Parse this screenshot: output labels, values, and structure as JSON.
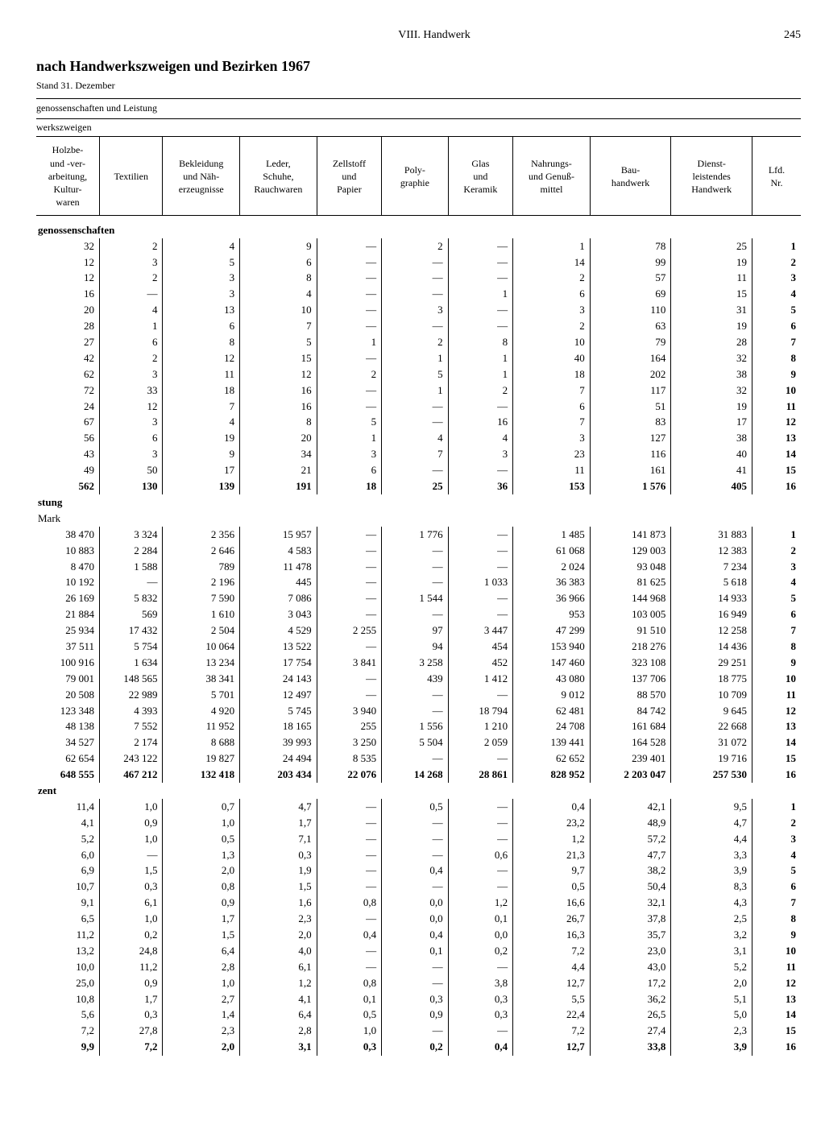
{
  "page": {
    "section": "VIII. Handwerk",
    "number": "245",
    "title": "nach Handwerkszweigen und Bezirken 1967",
    "date": "Stand 31. Dezember",
    "subhead1": "genossenschaften und Leistung",
    "subhead2": "werkszweigen"
  },
  "columns": [
    "Holzbe-\nund -ver-\narbeitung,\nKultur-\nwaren",
    "Textilien",
    "Bekleidung\nund Näh-\nerzeugnisse",
    "Leder,\nSchuhe,\nRauchwaren",
    "Zellstoff\nund\nPapier",
    "Poly-\ngraphie",
    "Glas\nund\nKeramik",
    "Nahrungs-\nund Genuß-\nmittel",
    "Bau-\nhandwerk",
    "Dienst-\nleistendes\nHandwerk",
    "Lfd.\nNr."
  ],
  "sections": [
    {
      "label": "genossenschaften",
      "unit": "",
      "rows": [
        [
          "32",
          "2",
          "4",
          "9",
          "—",
          "2",
          "—",
          "1",
          "78",
          "25",
          "1"
        ],
        [
          "12",
          "3",
          "5",
          "6",
          "—",
          "—",
          "—",
          "14",
          "99",
          "19",
          "2"
        ],
        [
          "12",
          "2",
          "3",
          "8",
          "—",
          "—",
          "—",
          "2",
          "57",
          "11",
          "3"
        ],
        [
          "16",
          "—",
          "3",
          "4",
          "—",
          "—",
          "1",
          "6",
          "69",
          "15",
          "4"
        ],
        [
          "20",
          "4",
          "13",
          "10",
          "—",
          "3",
          "—",
          "3",
          "110",
          "31",
          "5"
        ],
        [
          "28",
          "1",
          "6",
          "7",
          "—",
          "—",
          "—",
          "2",
          "63",
          "19",
          "6"
        ],
        [
          "27",
          "6",
          "8",
          "5",
          "1",
          "2",
          "8",
          "10",
          "79",
          "28",
          "7"
        ],
        [
          "42",
          "2",
          "12",
          "15",
          "—",
          "1",
          "1",
          "40",
          "164",
          "32",
          "8"
        ],
        [
          "62",
          "3",
          "11",
          "12",
          "2",
          "5",
          "1",
          "18",
          "202",
          "38",
          "9"
        ],
        [
          "72",
          "33",
          "18",
          "16",
          "—",
          "1",
          "2",
          "7",
          "117",
          "32",
          "10"
        ],
        [
          "24",
          "12",
          "7",
          "16",
          "—",
          "—",
          "—",
          "6",
          "51",
          "19",
          "11"
        ],
        [
          "67",
          "3",
          "4",
          "8",
          "5",
          "—",
          "16",
          "7",
          "83",
          "17",
          "12"
        ],
        [
          "56",
          "6",
          "19",
          "20",
          "1",
          "4",
          "4",
          "3",
          "127",
          "38",
          "13"
        ],
        [
          "43",
          "3",
          "9",
          "34",
          "3",
          "7",
          "3",
          "23",
          "116",
          "40",
          "14"
        ],
        [
          "49",
          "50",
          "17",
          "21",
          "6",
          "—",
          "—",
          "11",
          "161",
          "41",
          "15"
        ]
      ],
      "total": [
        "562",
        "130",
        "139",
        "191",
        "18",
        "25",
        "36",
        "153",
        "1 576",
        "405",
        "16"
      ]
    },
    {
      "label": "stung",
      "unit": "Mark",
      "rows": [
        [
          "38 470",
          "3 324",
          "2 356",
          "15 957",
          "—",
          "1 776",
          "—",
          "1 485",
          "141 873",
          "31 883",
          "1"
        ],
        [
          "10 883",
          "2 284",
          "2 646",
          "4 583",
          "—",
          "—",
          "—",
          "61 068",
          "129 003",
          "12 383",
          "2"
        ],
        [
          "8 470",
          "1 588",
          "789",
          "11 478",
          "—",
          "—",
          "—",
          "2 024",
          "93 048",
          "7 234",
          "3"
        ],
        [
          "10 192",
          "—",
          "2 196",
          "445",
          "—",
          "—",
          "1 033",
          "36 383",
          "81 625",
          "5 618",
          "4"
        ],
        [
          "26 169",
          "5 832",
          "7 590",
          "7 086",
          "—",
          "1 544",
          "—",
          "36 966",
          "144 968",
          "14 933",
          "5"
        ],
        [
          "21 884",
          "569",
          "1 610",
          "3 043",
          "—",
          "—",
          "—",
          "953",
          "103 005",
          "16 949",
          "6"
        ],
        [
          "25 934",
          "17 432",
          "2 504",
          "4 529",
          "2 255",
          "97",
          "3 447",
          "47 299",
          "91 510",
          "12 258",
          "7"
        ],
        [
          "37 511",
          "5 754",
          "10 064",
          "13 522",
          "—",
          "94",
          "454",
          "153 940",
          "218 276",
          "14 436",
          "8"
        ],
        [
          "100 916",
          "1 634",
          "13 234",
          "17 754",
          "3 841",
          "3 258",
          "452",
          "147 460",
          "323 108",
          "29 251",
          "9"
        ],
        [
          "79 001",
          "148 565",
          "38 341",
          "24 143",
          "—",
          "439",
          "1 412",
          "43 080",
          "137 706",
          "18 775",
          "10"
        ],
        [
          "20 508",
          "22 989",
          "5 701",
          "12 497",
          "—",
          "—",
          "—",
          "9 012",
          "88 570",
          "10 709",
          "11"
        ],
        [
          "123 348",
          "4 393",
          "4 920",
          "5 745",
          "3 940",
          "—",
          "18 794",
          "62 481",
          "84 742",
          "9 645",
          "12"
        ],
        [
          "48 138",
          "7 552",
          "11 952",
          "18 165",
          "255",
          "1 556",
          "1 210",
          "24 708",
          "161 684",
          "22 668",
          "13"
        ],
        [
          "34 527",
          "2 174",
          "8 688",
          "39 993",
          "3 250",
          "5 504",
          "2 059",
          "139 441",
          "164 528",
          "31 072",
          "14"
        ],
        [
          "62 654",
          "243 122",
          "19 827",
          "24 494",
          "8 535",
          "—",
          "—",
          "62 652",
          "239 401",
          "19 716",
          "15"
        ]
      ],
      "total": [
        "648 555",
        "467 212",
        "132 418",
        "203 434",
        "22 076",
        "14 268",
        "28 861",
        "828 952",
        "2 203 047",
        "257 530",
        "16"
      ]
    },
    {
      "label": "zent",
      "unit": "",
      "rows": [
        [
          "11,4",
          "1,0",
          "0,7",
          "4,7",
          "—",
          "0,5",
          "—",
          "0,4",
          "42,1",
          "9,5",
          "1"
        ],
        [
          "4,1",
          "0,9",
          "1,0",
          "1,7",
          "—",
          "—",
          "—",
          "23,2",
          "48,9",
          "4,7",
          "2"
        ],
        [
          "5,2",
          "1,0",
          "0,5",
          "7,1",
          "—",
          "—",
          "—",
          "1,2",
          "57,2",
          "4,4",
          "3"
        ],
        [
          "6,0",
          "—",
          "1,3",
          "0,3",
          "—",
          "—",
          "0,6",
          "21,3",
          "47,7",
          "3,3",
          "4"
        ],
        [
          "6,9",
          "1,5",
          "2,0",
          "1,9",
          "—",
          "0,4",
          "—",
          "9,7",
          "38,2",
          "3,9",
          "5"
        ],
        [
          "10,7",
          "0,3",
          "0,8",
          "1,5",
          "—",
          "—",
          "—",
          "0,5",
          "50,4",
          "8,3",
          "6"
        ],
        [
          "9,1",
          "6,1",
          "0,9",
          "1,6",
          "0,8",
          "0,0",
          "1,2",
          "16,6",
          "32,1",
          "4,3",
          "7"
        ],
        [
          "6,5",
          "1,0",
          "1,7",
          "2,3",
          "—",
          "0,0",
          "0,1",
          "26,7",
          "37,8",
          "2,5",
          "8"
        ],
        [
          "11,2",
          "0,2",
          "1,5",
          "2,0",
          "0,4",
          "0,4",
          "0,0",
          "16,3",
          "35,7",
          "3,2",
          "9"
        ],
        [
          "13,2",
          "24,8",
          "6,4",
          "4,0",
          "—",
          "0,1",
          "0,2",
          "7,2",
          "23,0",
          "3,1",
          "10"
        ],
        [
          "10,0",
          "11,2",
          "2,8",
          "6,1",
          "—",
          "—",
          "—",
          "4,4",
          "43,0",
          "5,2",
          "11"
        ],
        [
          "25,0",
          "0,9",
          "1,0",
          "1,2",
          "0,8",
          "—",
          "3,8",
          "12,7",
          "17,2",
          "2,0",
          "12"
        ],
        [
          "10,8",
          "1,7",
          "2,7",
          "4,1",
          "0,1",
          "0,3",
          "0,3",
          "5,5",
          "36,2",
          "5,1",
          "13"
        ],
        [
          "5,6",
          "0,3",
          "1,4",
          "6,4",
          "0,5",
          "0,9",
          "0,3",
          "22,4",
          "26,5",
          "5,0",
          "14"
        ],
        [
          "7,2",
          "27,8",
          "2,3",
          "2,8",
          "1,0",
          "—",
          "—",
          "7,2",
          "27,4",
          "2,3",
          "15"
        ]
      ],
      "total": [
        "9,9",
        "7,2",
        "2,0",
        "3,1",
        "0,3",
        "0,2",
        "0,4",
        "12,7",
        "33,8",
        "3,9",
        "16"
      ]
    }
  ]
}
